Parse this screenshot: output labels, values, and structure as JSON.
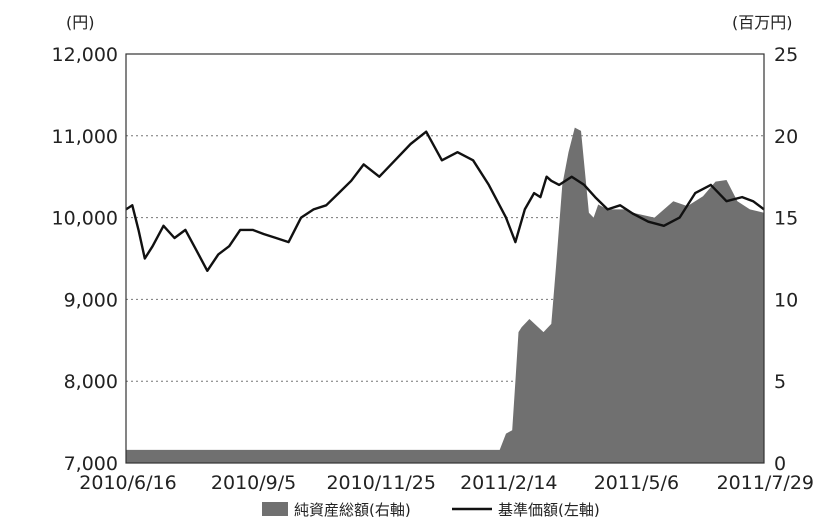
{
  "chart_data": {
    "type": "line",
    "title": "",
    "left_unit": "(円)",
    "right_unit": "(百万円)",
    "x_tick_labels": [
      "2010/6/16",
      "2010/9/5",
      "2010/11/25",
      "2011/2/14",
      "2011/5/6",
      "2011/7/29"
    ],
    "y_left_ticks": [
      "12,000",
      "11,000",
      "10,000",
      "9,000",
      "8,000",
      "7,000"
    ],
    "y_right_ticks": [
      "25",
      "20",
      "15",
      "10",
      "5",
      "0"
    ],
    "ylim_left": [
      7000,
      12000
    ],
    "ylim_right": [
      0,
      25
    ],
    "grid": true,
    "legend_position": "bottom",
    "colors": {
      "area": "#707070",
      "line": "#111111"
    },
    "series": [
      {
        "name": "純資産総額(右軸)",
        "axis": "right",
        "kind": "area",
        "x": [
          "2010/6/16",
          "2010/8/1",
          "2010/9/5",
          "2010/10/15",
          "2010/11/25",
          "2011/1/10",
          "2011/2/10",
          "2011/2/14",
          "2011/2/18",
          "2011/2/20",
          "2011/2/22",
          "2011/2/24",
          "2011/3/1",
          "2011/3/10",
          "2011/3/15",
          "2011/3/18",
          "2011/3/22",
          "2011/3/26",
          "2011/3/30",
          "2011/4/3",
          "2011/4/8",
          "2011/4/11",
          "2011/4/14",
          "2011/4/20",
          "2011/5/1",
          "2011/5/6",
          "2011/5/20",
          "2011/6/1",
          "2011/6/10",
          "2011/6/20",
          "2011/6/28",
          "2011/7/5",
          "2011/7/12",
          "2011/7/20",
          "2011/7/29"
        ],
        "values": [
          0.8,
          0.8,
          0.8,
          0.8,
          0.8,
          0.8,
          0.8,
          1.8,
          2.0,
          5.0,
          8.0,
          8.3,
          8.8,
          8.0,
          8.5,
          12.0,
          17.0,
          19.0,
          20.5,
          20.3,
          15.3,
          15.0,
          15.8,
          15.5,
          15.5,
          15.3,
          15.0,
          16.0,
          15.7,
          16.3,
          17.2,
          17.3,
          16.0,
          15.5,
          15.3
        ]
      },
      {
        "name": "基準価額(左軸)",
        "axis": "left",
        "kind": "line",
        "x": [
          "2010/6/16",
          "2010/6/20",
          "2010/6/24",
          "2010/6/28",
          "2010/7/3",
          "2010/7/10",
          "2010/7/17",
          "2010/7/24",
          "2010/7/31",
          "2010/8/7",
          "2010/8/14",
          "2010/8/21",
          "2010/8/28",
          "2010/9/5",
          "2010/9/12",
          "2010/9/20",
          "2010/9/28",
          "2010/10/6",
          "2010/10/14",
          "2010/10/22",
          "2010/10/30",
          "2010/11/7",
          "2010/11/15",
          "2010/11/25",
          "2010/12/5",
          "2010/12/15",
          "2010/12/25",
          "2011/1/4",
          "2011/1/14",
          "2011/1/24",
          "2011/2/3",
          "2011/2/14",
          "2011/2/20",
          "2011/2/26",
          "2011/3/4",
          "2011/3/8",
          "2011/3/12",
          "2011/3/15",
          "2011/3/20",
          "2011/3/28",
          "2011/4/5",
          "2011/4/12",
          "2011/4/20",
          "2011/4/28",
          "2011/5/6",
          "2011/5/16",
          "2011/5/26",
          "2011/6/5",
          "2011/6/15",
          "2011/6/25",
          "2011/7/5",
          "2011/7/15",
          "2011/7/22",
          "2011/7/29"
        ],
        "values": [
          10100,
          10150,
          9850,
          9500,
          9650,
          9900,
          9750,
          9850,
          9600,
          9350,
          9550,
          9650,
          9850,
          9850,
          9800,
          9750,
          9700,
          10000,
          10100,
          10150,
          10300,
          10450,
          10650,
          10500,
          10700,
          10900,
          11050,
          10700,
          10800,
          10700,
          10400,
          10000,
          9700,
          10100,
          10300,
          10250,
          10500,
          10450,
          10400,
          10500,
          10400,
          10250,
          10100,
          10150,
          10050,
          9950,
          9900,
          10000,
          10300,
          10400,
          10200,
          10250,
          10200,
          10100
        ]
      }
    ]
  }
}
